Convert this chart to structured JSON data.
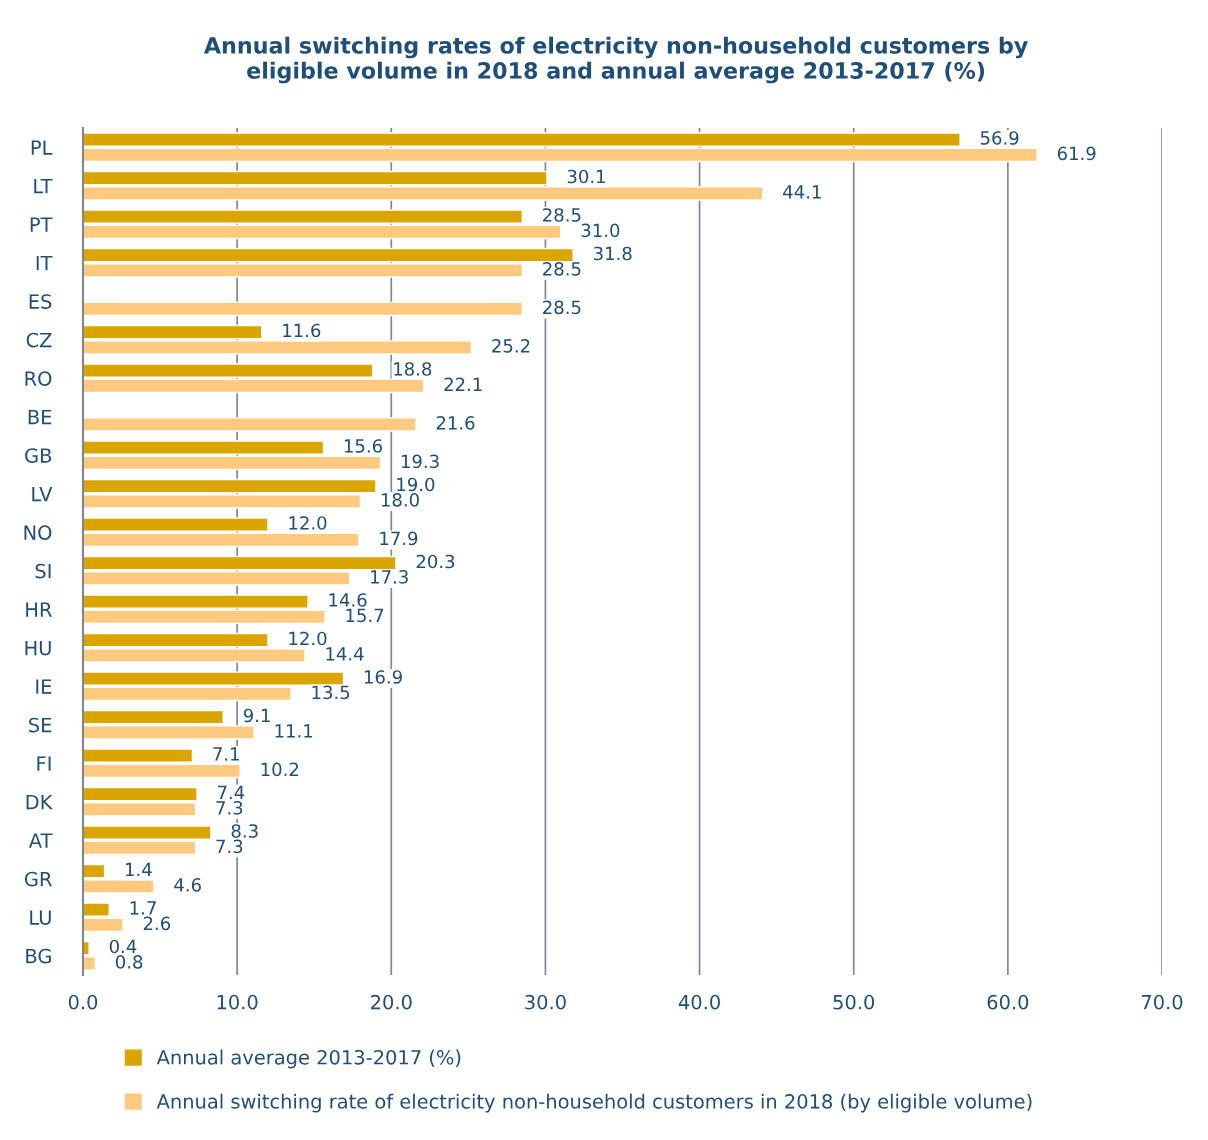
{
  "chart_data": {
    "type": "bar",
    "orientation": "horizontal",
    "title": "Annual switching rates of electricity non-household customers by eligible volume in 2018 and annual average 2013-2017 (%)",
    "categories": [
      "PL",
      "LT",
      "PT",
      "IT",
      "ES",
      "CZ",
      "RO",
      "BE",
      "GB",
      "LV",
      "NO",
      "SI",
      "HR",
      "HU",
      "IE",
      "SE",
      "FI",
      "DK",
      "AT",
      "GR",
      "LU",
      "BG"
    ],
    "series": [
      {
        "name": "Annual average 2013-2017 (%)",
        "color": "#dba500",
        "values": [
          56.9,
          30.1,
          28.5,
          31.8,
          null,
          11.6,
          18.8,
          null,
          15.6,
          19.0,
          12.0,
          20.3,
          14.6,
          12.0,
          16.9,
          9.1,
          7.1,
          7.4,
          8.3,
          1.4,
          1.7,
          0.4
        ],
        "value_labels": [
          "56.9",
          "30.1",
          "28.5",
          "31.8",
          null,
          "11.6",
          "18.8",
          null,
          "15.6",
          "19.0",
          "12.0",
          "20.3",
          "14.6",
          "12.0",
          "16.9",
          "9.1",
          "7.1",
          "7.4",
          "8.3",
          "1.4",
          "1.7",
          "0.4"
        ]
      },
      {
        "name": "Annual switching rate of electricity non-household customers in 2018 (by eligible volume)",
        "color": "#ffca80",
        "values": [
          61.9,
          44.1,
          31.0,
          28.5,
          28.5,
          25.2,
          22.1,
          21.6,
          19.3,
          18.0,
          17.9,
          17.3,
          15.7,
          14.4,
          13.5,
          11.1,
          10.2,
          7.3,
          7.3,
          4.6,
          2.6,
          0.8
        ],
        "value_labels": [
          "61.9",
          "44.1",
          "31.0",
          "28.5",
          "28.5",
          "25.2",
          "22.1",
          "21.6",
          "19.3",
          "18.0",
          "17.9",
          "17.3",
          "15.7",
          "14.4",
          "13.5",
          "11.1",
          "10.2",
          "7.3",
          "7.3",
          "4.6",
          "2.6",
          "0.8"
        ]
      }
    ],
    "xlim": [
      0,
      70
    ],
    "xticks": [
      {
        "value": 0,
        "label": "0.0"
      },
      {
        "value": 10,
        "label": "10.0"
      },
      {
        "value": 20,
        "label": "20.0"
      },
      {
        "value": 30,
        "label": "30.0"
      },
      {
        "value": 40,
        "label": "40.0"
      },
      {
        "value": 50,
        "label": "50.0"
      },
      {
        "value": 60,
        "label": "60.0"
      },
      {
        "value": 70,
        "label": "70.0"
      }
    ],
    "grid": "x",
    "legend": "bottom"
  }
}
